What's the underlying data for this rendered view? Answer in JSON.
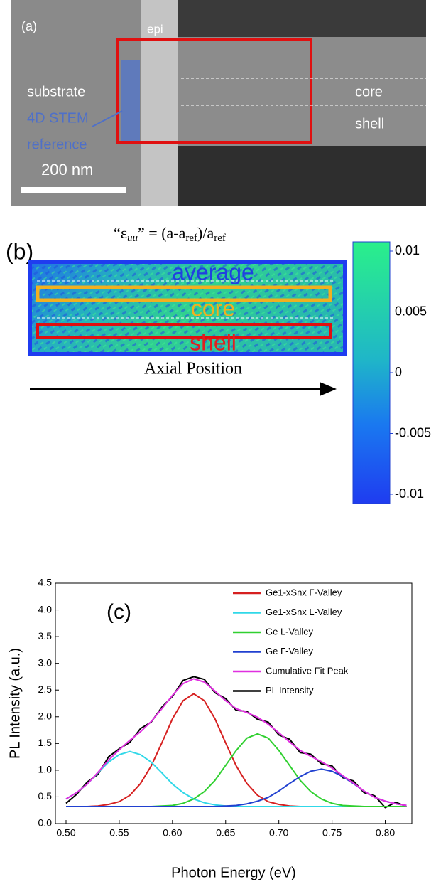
{
  "panel_a": {
    "label": "(a)",
    "epi": "epi",
    "substrate": "substrate",
    "reference_lines": [
      "4D STEM",
      "reference"
    ],
    "scale_bar": "200 nm",
    "core": "core",
    "shell": "shell"
  },
  "panel_b": {
    "label": "(b)",
    "formula": [
      "“ε",
      "uu",
      "” = (a-a",
      "ref",
      ")/a",
      "ref"
    ],
    "map_labels": {
      "average": "average",
      "core": "core",
      "shell": "shell"
    },
    "axis_label": "Axial Position",
    "colorbar": {
      "lim": [
        -0.01,
        0.01
      ],
      "ticks": [
        0.01,
        0.005,
        0,
        -0.005,
        -0.01
      ]
    }
  },
  "chart_data": {
    "type": "line",
    "label": "(c)",
    "x_label": "Photon Energy (eV)",
    "y_label": "PL Intensity (a.u.)",
    "x": [
      0.5,
      0.51,
      0.52,
      0.53,
      0.54,
      0.55,
      0.56,
      0.57,
      0.58,
      0.59,
      0.6,
      0.61,
      0.62,
      0.63,
      0.64,
      0.65,
      0.66,
      0.67,
      0.68,
      0.69,
      0.7,
      0.71,
      0.72,
      0.73,
      0.74,
      0.75,
      0.76,
      0.77,
      0.78,
      0.79,
      0.8,
      0.81,
      0.82
    ],
    "xlim": [
      0.49,
      0.825
    ],
    "ylim": [
      0,
      4.5
    ],
    "xticks": [
      {
        "value": 0.5,
        "label": "0.50"
      },
      0.55,
      {
        "value": 0.6,
        "label": "0.60"
      },
      0.65,
      {
        "value": 0.7,
        "label": "0.70"
      },
      0.75,
      {
        "value": 0.8,
        "label": "0.80"
      }
    ],
    "yticks": [
      {
        "value": 0,
        "label": "0.0"
      },
      0.5,
      {
        "value": 1,
        "label": "1.0"
      },
      1.5,
      {
        "value": 2,
        "label": "2.0"
      },
      2.5,
      {
        "value": 3,
        "label": "3.0"
      },
      3.5,
      {
        "value": 4,
        "label": "4.0"
      },
      4.5
    ],
    "legend": "upper right",
    "series": [
      {
        "name": "Ge1-xSnx Γ-Valley",
        "color": "#d62020",
        "values": [
          0.32,
          0.32,
          0.32,
          0.33,
          0.36,
          0.41,
          0.53,
          0.75,
          1.08,
          1.51,
          1.96,
          2.3,
          2.43,
          2.3,
          1.96,
          1.51,
          1.08,
          0.75,
          0.53,
          0.41,
          0.36,
          0.33,
          0.32,
          0.32,
          0.32,
          0.32,
          0.32,
          0.32,
          0.32,
          0.32,
          0.32,
          0.32,
          0.32
        ]
      },
      {
        "name": "Ge1-xSnx L-Valley",
        "color": "#30d8e8",
        "values": [
          0.46,
          0.58,
          0.74,
          0.95,
          1.15,
          1.29,
          1.35,
          1.29,
          1.15,
          0.95,
          0.74,
          0.58,
          0.46,
          0.39,
          0.35,
          0.33,
          0.32,
          0.32,
          0.32,
          0.32,
          0.32,
          0.32,
          0.32,
          0.32,
          0.32,
          0.32,
          0.32,
          0.32,
          0.32,
          0.32,
          0.32,
          0.32,
          0.32
        ]
      },
      {
        "name": "Ge L-Valley",
        "color": "#30d030",
        "values": [
          0.32,
          0.32,
          0.32,
          0.32,
          0.32,
          0.32,
          0.32,
          0.32,
          0.32,
          0.33,
          0.34,
          0.38,
          0.46,
          0.6,
          0.81,
          1.09,
          1.37,
          1.6,
          1.68,
          1.6,
          1.37,
          1.09,
          0.81,
          0.6,
          0.46,
          0.38,
          0.34,
          0.33,
          0.32,
          0.32,
          0.32,
          0.32,
          0.32
        ]
      },
      {
        "name": "Ge Γ-Valley",
        "color": "#2040d0",
        "values": [
          0.32,
          0.32,
          0.32,
          0.32,
          0.32,
          0.32,
          0.32,
          0.32,
          0.32,
          0.32,
          0.32,
          0.32,
          0.32,
          0.32,
          0.32,
          0.33,
          0.34,
          0.37,
          0.42,
          0.49,
          0.61,
          0.75,
          0.88,
          0.98,
          1.02,
          0.98,
          0.88,
          0.75,
          0.61,
          0.49,
          0.42,
          0.37,
          0.34
        ]
      },
      {
        "name": "Cumulative Fit Peak",
        "color": "#e030e0",
        "values": [
          0.46,
          0.58,
          0.74,
          0.96,
          1.19,
          1.38,
          1.56,
          1.72,
          1.91,
          2.15,
          2.4,
          2.62,
          2.71,
          2.65,
          2.48,
          2.3,
          2.15,
          2.08,
          1.99,
          1.86,
          1.7,
          1.53,
          1.37,
          1.26,
          1.16,
          1.04,
          0.9,
          0.76,
          0.61,
          0.49,
          0.42,
          0.37,
          0.34
        ]
      },
      {
        "name": "PL Intensity",
        "color": "#000000",
        "values": [
          0.38,
          0.55,
          0.78,
          0.92,
          1.25,
          1.4,
          1.52,
          1.78,
          1.9,
          2.18,
          2.38,
          2.68,
          2.75,
          2.7,
          2.45,
          2.34,
          2.12,
          2.1,
          1.95,
          1.9,
          1.66,
          1.58,
          1.33,
          1.3,
          1.12,
          1.08,
          0.86,
          0.8,
          0.58,
          0.52,
          0.3,
          0.4,
          0.32
        ]
      }
    ]
  }
}
